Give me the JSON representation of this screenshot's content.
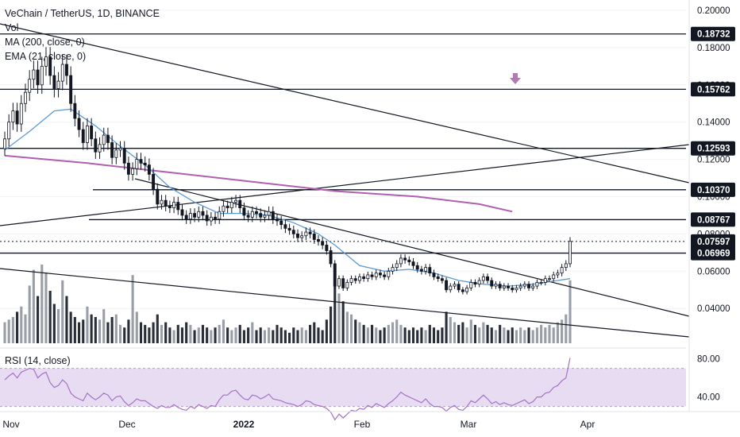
{
  "legend": {
    "title": "VeChain / TetherUS, 1D, BINANCE",
    "vol": "Vol",
    "ma": "MA (200, close, 0)",
    "ema": "EMA (21, close, 0)"
  },
  "rsi_label": "RSI (14, close)",
  "colors": {
    "up": "#ffffff",
    "down": "#131722",
    "ema": "#5b9bd5",
    "ma": "#b05fb0",
    "rsi": "#a672c8",
    "rsi_band": "#e8dcf2",
    "tag": "#131722",
    "marker": "#b07bb0"
  },
  "chart_data": [
    {
      "type": "candlestick",
      "title": "VeChain / TetherUS, 1D, BINANCE",
      "x_ticks": [
        "Nov",
        "Dec",
        "2022",
        "Feb",
        "Mar",
        "Apr"
      ],
      "y_ticks": [
        "0.20000",
        "0.18000",
        "0.16000",
        "0.14000",
        "0.12000",
        "0.10000",
        "0.08000",
        "0.06000",
        "0.04000"
      ],
      "ylim": [
        0.025,
        0.205
      ],
      "price_levels": [
        "0.18732",
        "0.15762",
        "0.12593",
        "0.10370",
        "0.08767",
        "0.07597",
        "0.06969"
      ],
      "last_price": "0.07597",
      "series": [
        {
          "name": "VeChain / TetherUS",
          "closes": [
            0.131,
            0.14,
            0.146,
            0.139,
            0.15,
            0.156,
            0.163,
            0.168,
            0.16,
            0.17,
            0.175,
            0.165,
            0.158,
            0.162,
            0.171,
            0.165,
            0.15,
            0.142,
            0.136,
            0.129,
            0.138,
            0.131,
            0.124,
            0.128,
            0.133,
            0.129,
            0.121,
            0.125,
            0.126,
            0.118,
            0.112,
            0.115,
            0.12,
            0.118,
            0.117,
            0.112,
            0.104,
            0.096,
            0.098,
            0.095,
            0.094,
            0.097,
            0.093,
            0.09,
            0.088,
            0.091,
            0.089,
            0.092,
            0.09,
            0.087,
            0.089,
            0.088,
            0.092,
            0.095,
            0.094,
            0.097,
            0.098,
            0.094,
            0.09,
            0.089,
            0.092,
            0.091,
            0.089,
            0.09,
            0.092,
            0.088,
            0.087,
            0.085,
            0.083,
            0.082,
            0.08,
            0.078,
            0.079,
            0.081,
            0.08,
            0.077,
            0.076,
            0.074,
            0.071,
            0.064,
            0.052,
            0.056,
            0.051,
            0.054,
            0.056,
            0.055,
            0.057,
            0.056,
            0.058,
            0.057,
            0.059,
            0.058,
            0.057,
            0.06,
            0.062,
            0.064,
            0.067,
            0.066,
            0.065,
            0.063,
            0.061,
            0.06,
            0.062,
            0.059,
            0.057,
            0.056,
            0.055,
            0.05,
            0.052,
            0.053,
            0.05,
            0.049,
            0.051,
            0.054,
            0.053,
            0.055,
            0.057,
            0.055,
            0.052,
            0.053,
            0.051,
            0.052,
            0.051,
            0.05,
            0.051,
            0.052,
            0.053,
            0.051,
            0.052,
            0.054,
            0.054,
            0.056,
            0.056,
            0.058,
            0.059,
            0.062,
            0.064,
            0.076
          ],
          "volumes": [
            0.08,
            0.09,
            0.1,
            0.12,
            0.14,
            0.11,
            0.22,
            0.28,
            0.18,
            0.3,
            0.27,
            0.2,
            0.15,
            0.13,
            0.24,
            0.18,
            0.12,
            0.1,
            0.08,
            0.09,
            0.14,
            0.11,
            0.1,
            0.09,
            0.13,
            0.08,
            0.1,
            0.11,
            0.07,
            0.06,
            0.09,
            0.26,
            0.12,
            0.08,
            0.07,
            0.06,
            0.08,
            0.11,
            0.07,
            0.08,
            0.06,
            0.05,
            0.07,
            0.06,
            0.08,
            0.07,
            0.05,
            0.06,
            0.07,
            0.06,
            0.05,
            0.06,
            0.07,
            0.09,
            0.06,
            0.05,
            0.06,
            0.07,
            0.05,
            0.06,
            0.08,
            0.05,
            0.06,
            0.05,
            0.06,
            0.05,
            0.07,
            0.06,
            0.05,
            0.04,
            0.06,
            0.05,
            0.06,
            0.05,
            0.07,
            0.08,
            0.06,
            0.05,
            0.09,
            0.14,
            0.22,
            0.19,
            0.16,
            0.12,
            0.11,
            0.09,
            0.08,
            0.07,
            0.06,
            0.07,
            0.06,
            0.05,
            0.06,
            0.07,
            0.08,
            0.09,
            0.07,
            0.06,
            0.05,
            0.06,
            0.05,
            0.06,
            0.05,
            0.07,
            0.06,
            0.05,
            0.06,
            0.12,
            0.1,
            0.08,
            0.07,
            0.08,
            0.06,
            0.09,
            0.07,
            0.06,
            0.08,
            0.07,
            0.06,
            0.05,
            0.07,
            0.06,
            0.05,
            0.06,
            0.05,
            0.06,
            0.05,
            0.06,
            0.05,
            0.06,
            0.07,
            0.06,
            0.07,
            0.06,
            0.08,
            0.09,
            0.11,
            0.24
          ]
        },
        {
          "name": "MA (200, close, 0)",
          "points": [
            [
              0,
              0.122
            ],
            [
              20,
              0.118
            ],
            [
              40,
              0.113
            ],
            [
              60,
              0.108
            ],
            [
              80,
              0.103
            ],
            [
              100,
              0.1
            ],
            [
              115,
              0.096
            ],
            [
              123,
              0.092
            ]
          ]
        },
        {
          "name": "EMA (21, close, 0)",
          "points": [
            [
              0,
              0.125
            ],
            [
              6,
              0.135
            ],
            [
              12,
              0.146
            ],
            [
              16,
              0.147
            ],
            [
              22,
              0.138
            ],
            [
              28,
              0.127
            ],
            [
              34,
              0.117
            ],
            [
              40,
              0.105
            ],
            [
              46,
              0.097
            ],
            [
              52,
              0.091
            ],
            [
              58,
              0.091
            ],
            [
              64,
              0.09
            ],
            [
              70,
              0.086
            ],
            [
              76,
              0.08
            ],
            [
              80,
              0.074
            ],
            [
              86,
              0.063
            ],
            [
              92,
              0.06
            ],
            [
              98,
              0.061
            ],
            [
              104,
              0.059
            ],
            [
              110,
              0.055
            ],
            [
              116,
              0.053
            ],
            [
              122,
              0.052
            ],
            [
              128,
              0.053
            ],
            [
              134,
              0.055
            ],
            [
              137,
              0.056
            ]
          ]
        }
      ]
    },
    {
      "type": "line",
      "title": "RSI (14, close)",
      "y_ticks": [
        "80.00",
        "40.00"
      ],
      "ylim": [
        20,
        90
      ],
      "series": [
        {
          "name": "RSI (14, close)",
          "values": [
            58,
            62,
            65,
            60,
            66,
            68,
            70,
            69,
            60,
            64,
            66,
            55,
            50,
            52,
            58,
            54,
            44,
            40,
            38,
            36,
            44,
            40,
            37,
            40,
            44,
            42,
            36,
            40,
            41,
            35,
            31,
            34,
            38,
            36,
            36,
            33,
            30,
            28,
            31,
            29,
            29,
            32,
            29,
            27,
            26,
            30,
            28,
            32,
            30,
            28,
            31,
            30,
            37,
            42,
            42,
            46,
            47,
            42,
            38,
            37,
            42,
            41,
            38,
            40,
            43,
            38,
            37,
            36,
            34,
            33,
            32,
            30,
            32,
            36,
            35,
            32,
            31,
            30,
            28,
            24,
            16,
            22,
            18,
            22,
            26,
            25,
            28,
            27,
            31,
            29,
            33,
            31,
            29,
            33,
            36,
            40,
            45,
            42,
            40,
            38,
            36,
            34,
            38,
            33,
            30,
            30,
            29,
            25,
            29,
            31,
            27,
            26,
            30,
            36,
            34,
            38,
            42,
            38,
            33,
            35,
            32,
            34,
            32,
            31,
            33,
            35,
            37,
            33,
            35,
            40,
            40,
            44,
            45,
            50,
            52,
            57,
            60,
            81
          ]
        }
      ]
    }
  ]
}
